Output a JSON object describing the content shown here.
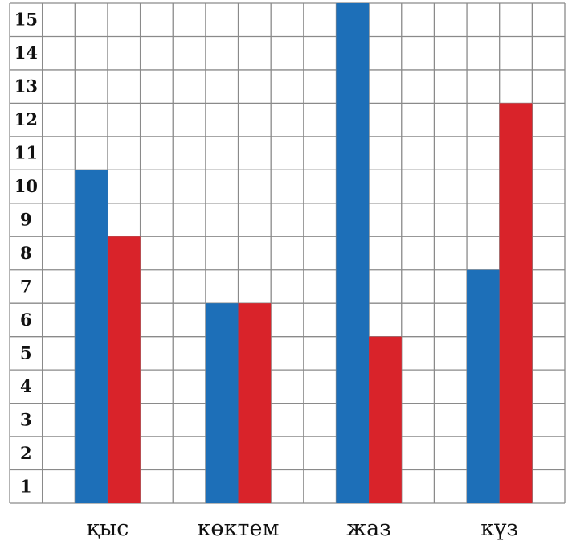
{
  "chart_data": {
    "type": "bar",
    "categories": [
      "қыс",
      "көктем",
      "жаз",
      "күз"
    ],
    "series": [
      {
        "values": [
          10,
          6,
          15,
          7
        ],
        "color": "#1d6fb8"
      },
      {
        "values": [
          8,
          6,
          5,
          12
        ],
        "color": "#d9232a"
      }
    ],
    "ylim": [
      0,
      15
    ],
    "yticks": [
      1,
      2,
      3,
      4,
      5,
      6,
      7,
      8,
      9,
      10,
      11,
      12,
      13,
      14,
      15
    ],
    "grid": true,
    "legend": "none"
  }
}
